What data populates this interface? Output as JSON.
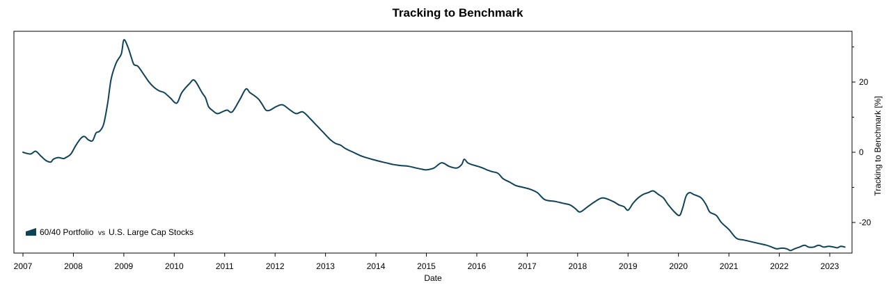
{
  "chart_data": {
    "type": "line",
    "title": "Tracking to Benchmark",
    "xlabel": "Date",
    "ylabel": "Tracking to Benchmark [%]",
    "xlim": [
      2007.0,
      2023.4
    ],
    "ylim": [
      -28.5,
      34
    ],
    "x_ticks": [
      "2007",
      "2008",
      "2009",
      "2010",
      "2011",
      "2012",
      "2013",
      "2014",
      "2015",
      "2016",
      "2017",
      "2018",
      "2019",
      "2020",
      "2021",
      "2022",
      "2023"
    ],
    "y_ticks": [
      20,
      0,
      -20
    ],
    "y_axis_side": "right",
    "grid": false,
    "legend": {
      "position": "bottom-left",
      "series_label": "60/40 Portfolio",
      "vs_label": "vs",
      "benchmark_label": "U.S. Large Cap Stocks"
    },
    "series": [
      {
        "name": "60/40 Portfolio",
        "color": "#0e4257",
        "x": [
          2007.0,
          2007.15,
          2007.25,
          2007.35,
          2007.45,
          2007.55,
          2007.6,
          2007.7,
          2007.8,
          2007.85,
          2007.95,
          2008.05,
          2008.15,
          2008.22,
          2008.3,
          2008.38,
          2008.45,
          2008.52,
          2008.6,
          2008.68,
          2008.75,
          2008.85,
          2008.95,
          2009.0,
          2009.08,
          2009.15,
          2009.2,
          2009.28,
          2009.38,
          2009.5,
          2009.6,
          2009.7,
          2009.8,
          2009.92,
          2010.05,
          2010.15,
          2010.3,
          2010.4,
          2010.55,
          2010.62,
          2010.68,
          2010.75,
          2010.85,
          2010.95,
          2011.05,
          2011.15,
          2011.3,
          2011.42,
          2011.5,
          2011.6,
          2011.68,
          2011.75,
          2011.82,
          2011.9,
          2012.02,
          2012.15,
          2012.3,
          2012.42,
          2012.55,
          2012.7,
          2012.8,
          2012.9,
          2013.0,
          2013.1,
          2013.2,
          2013.3,
          2013.4,
          2013.55,
          2013.7,
          2013.8,
          2013.92,
          2014.05,
          2014.2,
          2014.35,
          2014.5,
          2014.65,
          2014.8,
          2014.9,
          2015.0,
          2015.15,
          2015.3,
          2015.45,
          2015.6,
          2015.7,
          2015.75,
          2015.82,
          2015.9,
          2016.02,
          2016.12,
          2016.2,
          2016.3,
          2016.42,
          2016.52,
          2016.65,
          2016.78,
          2016.92,
          2017.05,
          2017.2,
          2017.35,
          2017.55,
          2017.7,
          2017.85,
          2017.95,
          2018.05,
          2018.2,
          2018.35,
          2018.5,
          2018.7,
          2018.82,
          2018.92,
          2019.0,
          2019.1,
          2019.2,
          2019.3,
          2019.4,
          2019.5,
          2019.6,
          2019.7,
          2019.8,
          2019.92,
          2020.02,
          2020.08,
          2020.15,
          2020.22,
          2020.3,
          2020.45,
          2020.55,
          2020.62,
          2020.75,
          2020.85,
          2021.0,
          2021.15,
          2021.3,
          2021.45,
          2021.6,
          2021.75,
          2021.85,
          2021.95,
          2022.05,
          2022.15,
          2022.22,
          2022.3,
          2022.4,
          2022.5,
          2022.58,
          2022.68,
          2022.78,
          2022.88,
          2022.98,
          2023.08,
          2023.15,
          2023.22,
          2023.3
        ],
        "y": [
          0,
          -0.5,
          0.3,
          -1.0,
          -2.3,
          -2.8,
          -2.0,
          -1.5,
          -1.8,
          -1.5,
          -0.5,
          2.0,
          4.0,
          4.5,
          3.5,
          3.3,
          5.5,
          6.0,
          8.0,
          14.0,
          21.0,
          25.5,
          28.0,
          32.0,
          30.0,
          27.0,
          25.0,
          24.5,
          22.5,
          20.0,
          18.5,
          17.5,
          17.0,
          15.5,
          14.0,
          17.0,
          19.5,
          20.5,
          17.0,
          15.5,
          13.0,
          12.0,
          11.0,
          11.5,
          12.0,
          11.5,
          15.0,
          18.0,
          17.0,
          16.0,
          15.0,
          13.5,
          12.0,
          12.0,
          13.0,
          13.5,
          12.0,
          11.0,
          11.5,
          9.5,
          8.0,
          6.5,
          5.0,
          3.5,
          2.5,
          2.0,
          1.0,
          0.0,
          -1.0,
          -1.5,
          -2.0,
          -2.5,
          -3.0,
          -3.5,
          -3.8,
          -4.0,
          -4.5,
          -4.8,
          -5.0,
          -4.5,
          -3.0,
          -4.0,
          -4.5,
          -3.5,
          -2.0,
          -3.0,
          -3.5,
          -4.0,
          -4.5,
          -5.0,
          -5.5,
          -6.0,
          -7.5,
          -8.5,
          -9.5,
          -10.0,
          -10.5,
          -11.5,
          -13.5,
          -14.0,
          -14.5,
          -15.0,
          -16.0,
          -17.0,
          -15.5,
          -14.0,
          -13.0,
          -14.0,
          -15.0,
          -15.5,
          -16.5,
          -14.5,
          -13.0,
          -12.0,
          -11.5,
          -11.0,
          -12.0,
          -13.0,
          -15.0,
          -17.0,
          -18.0,
          -16.0,
          -12.5,
          -11.5,
          -12.0,
          -13.0,
          -15.0,
          -17.0,
          -18.0,
          -20.0,
          -22.0,
          -24.5,
          -25.0,
          -25.5,
          -26.0,
          -26.5,
          -27.0,
          -27.5,
          -27.3,
          -27.5,
          -28.0,
          -27.5,
          -27.0,
          -26.5,
          -27.0,
          -27.0,
          -26.5,
          -27.0,
          -26.8,
          -27.0,
          -27.2,
          -26.8,
          -27.0
        ]
      }
    ]
  }
}
